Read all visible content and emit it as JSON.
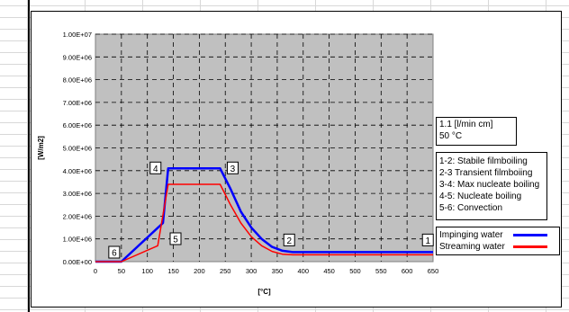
{
  "chart_data": {
    "type": "line",
    "xlabel": "[°C]",
    "ylabel": "[W/m2]",
    "x_ticks": [
      "0",
      "50",
      "100",
      "150",
      "200",
      "250",
      "300",
      "350",
      "400",
      "450",
      "500",
      "550",
      "600",
      "650"
    ],
    "y_ticks": [
      "0.00E+00",
      "1.00E+06",
      "2.00E+06",
      "3.00E+06",
      "4.00E+06",
      "5.00E+06",
      "6.00E+06",
      "7.00E+06",
      "8.00E+06",
      "9.00E+06",
      "1.00E+07"
    ],
    "xlim": [
      0,
      650
    ],
    "ylim": [
      0,
      10000000
    ],
    "grid": true,
    "plot_background": "#c0c0c0",
    "series": [
      {
        "name": "Impinging water",
        "color": "#0000ff",
        "points": [
          [
            0,
            0
          ],
          [
            50,
            0
          ],
          [
            130,
            1700000
          ],
          [
            140,
            4100000
          ],
          [
            240,
            4100000
          ],
          [
            260,
            3200000
          ],
          [
            280,
            2200000
          ],
          [
            300,
            1500000
          ],
          [
            320,
            1000000
          ],
          [
            340,
            650000
          ],
          [
            360,
            480000
          ],
          [
            380,
            420000
          ],
          [
            650,
            420000
          ]
        ]
      },
      {
        "name": "Streaming water",
        "color": "#ff0000",
        "points": [
          [
            0,
            0
          ],
          [
            50,
            0
          ],
          [
            120,
            700000
          ],
          [
            140,
            3400000
          ],
          [
            240,
            3400000
          ],
          [
            260,
            2500000
          ],
          [
            280,
            1700000
          ],
          [
            300,
            1100000
          ],
          [
            320,
            700000
          ],
          [
            340,
            450000
          ],
          [
            360,
            330000
          ],
          [
            380,
            300000
          ],
          [
            650,
            300000
          ]
        ]
      }
    ],
    "point_labels": [
      {
        "text": "1",
        "x": 640,
        "y": 420000
      },
      {
        "text": "2",
        "x": 380,
        "y": 420000
      },
      {
        "text": "3",
        "x": 240,
        "y": 4100000
      },
      {
        "text": "4",
        "x": 140,
        "y": 4100000
      },
      {
        "text": "5",
        "x": 130,
        "y": 1700000
      },
      {
        "text": "6",
        "x": 50,
        "y": 0
      }
    ]
  },
  "info_box": {
    "lines": [
      "1.1 [l/min cm]",
      "50 °C"
    ]
  },
  "phase_box": {
    "lines": [
      "1-2: Stabile filmboiling",
      "2-3 Transient filmboiing",
      "3-4: Max nucleate boiling",
      "4-5: Nucleate boiling",
      "5-6: Convection"
    ]
  },
  "legend": {
    "items": [
      {
        "label": "Impinging water",
        "color": "#0000ff"
      },
      {
        "label": "Streaming water",
        "color": "#ff0000"
      }
    ]
  }
}
